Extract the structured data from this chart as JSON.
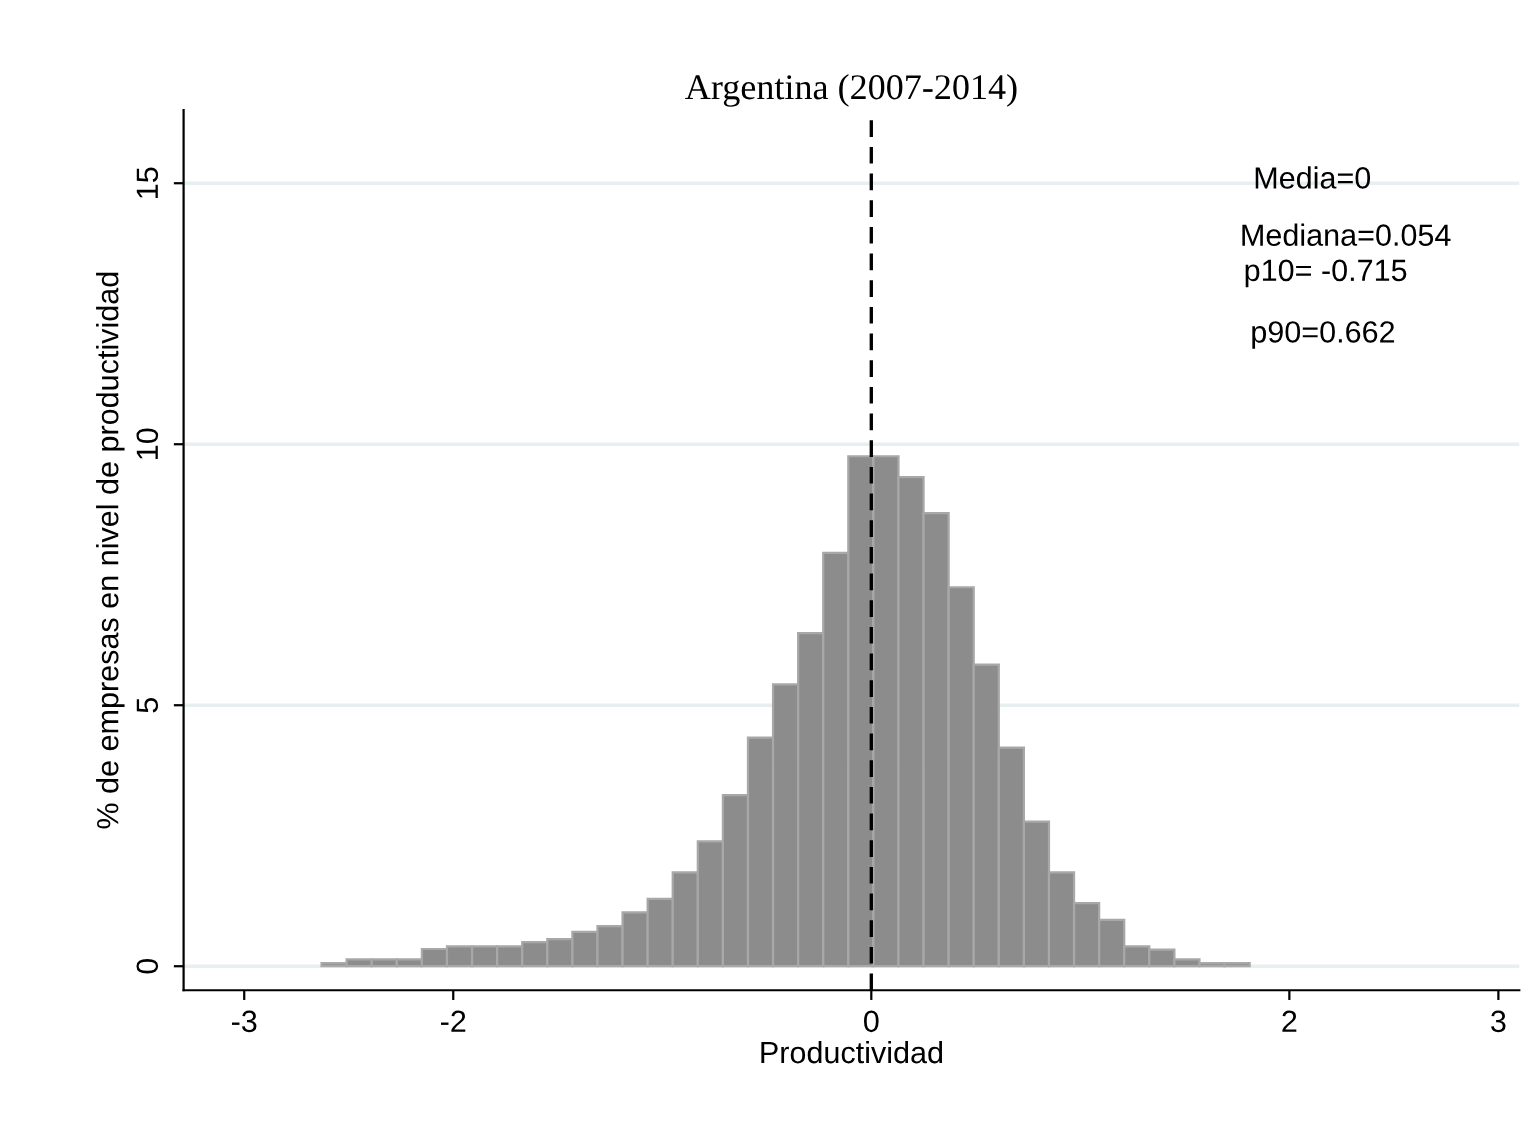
{
  "chart_data": {
    "type": "histogram",
    "title": "Argentina (2007-2014)",
    "xlabel": "Productividad",
    "ylabel": "% de empresas en nivel de productividad",
    "bins": [
      -2.63,
      -2.51,
      -2.39,
      -2.27,
      -2.15,
      -2.03,
      -1.91,
      -1.79,
      -1.67,
      -1.55,
      -1.43,
      -1.31,
      -1.19,
      -1.07,
      -0.95,
      -0.83,
      -0.71,
      -0.59,
      -0.47,
      -0.35,
      -0.23,
      -0.11,
      0.01,
      0.13,
      0.25,
      0.37,
      0.49,
      0.61,
      0.73,
      0.85,
      0.97,
      1.09,
      1.21,
      1.33,
      1.45,
      1.57,
      1.69,
      1.81
    ],
    "values": [
      0.06,
      0.13,
      0.13,
      0.13,
      0.33,
      0.38,
      0.38,
      0.38,
      0.46,
      0.52,
      0.66,
      0.77,
      1.03,
      1.29,
      1.8,
      2.39,
      3.28,
      4.38,
      5.4,
      6.38,
      7.92,
      9.77,
      9.77,
      9.37,
      8.68,
      7.26,
      5.78,
      4.19,
      2.77,
      1.8,
      1.21,
      0.89,
      0.38,
      0.32,
      0.13,
      0.06,
      0.06
    ],
    "color": "#8c8c8c",
    "xlim": [
      -3.29,
      3.1
    ],
    "xticks": [
      -3,
      -2,
      0,
      2,
      3
    ],
    "ylim": [
      -0.46,
      16.4
    ],
    "yticks": [
      0,
      5,
      10,
      15
    ],
    "grid": "y",
    "ref_lines": [
      {
        "axis": "x",
        "value": 0,
        "line_style": "dashed",
        "color": "#000000"
      }
    ],
    "annotations": [
      "Media=0",
      "Mediana=0.054",
      "p10= -0.715",
      "p90=0.662"
    ]
  }
}
